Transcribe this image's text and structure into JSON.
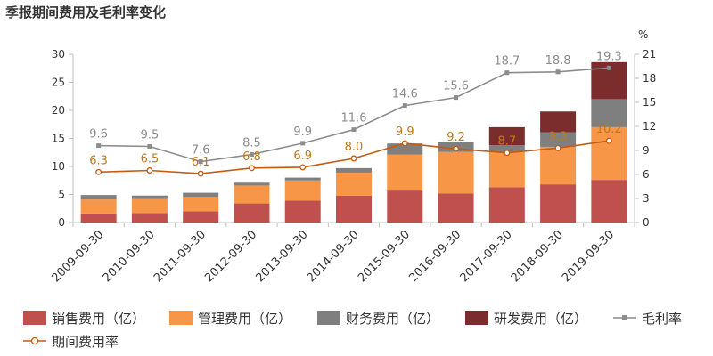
{
  "chart_data": {
    "type": "bar",
    "title": "季报期间费用及毛利率变化",
    "categories": [
      "2009-09-30",
      "2010-09-30",
      "2011-09-30",
      "2012-09-30",
      "2013-09-30",
      "2014-09-30",
      "2015-09-30",
      "2016-09-30",
      "2017-09-30",
      "2018-09-30",
      "2019-09-30"
    ],
    "stacked": true,
    "y_left": {
      "min": 0,
      "max": 30,
      "ticks": [
        0,
        5,
        10,
        15,
        20,
        25,
        30
      ]
    },
    "y_right": {
      "min": 0,
      "max": 21,
      "ticks": [
        0,
        3,
        6,
        9,
        12,
        15,
        18,
        21
      ],
      "unit": "%"
    },
    "series": [
      {
        "name": "销售费用（亿）",
        "axis": "left",
        "color": "#c0504d",
        "values": [
          1.6,
          1.7,
          2.0,
          3.4,
          3.9,
          4.8,
          5.7,
          5.2,
          6.3,
          6.8,
          7.6
        ]
      },
      {
        "name": "管理费用（亿）",
        "axis": "left",
        "color": "#f79646",
        "values": [
          2.5,
          2.5,
          2.6,
          3.2,
          3.6,
          4.1,
          6.4,
          7.4,
          6.3,
          6.7,
          9.4
        ]
      },
      {
        "name": "财务费用（亿）",
        "axis": "left",
        "color": "#7f7f7f",
        "values": [
          0.8,
          0.6,
          0.7,
          0.5,
          0.5,
          0.8,
          2.0,
          1.7,
          1.2,
          2.6,
          5.0
        ]
      },
      {
        "name": "研发费用（亿）",
        "axis": "left",
        "color": "#7b2c2c",
        "values": [
          0,
          0,
          0,
          0,
          0,
          0,
          0,
          0,
          3.2,
          3.7,
          6.6
        ]
      },
      {
        "name": "毛利率",
        "axis": "right",
        "type": "line",
        "marker": "square",
        "color": "#8c8c8c",
        "label_color": "#8c8c8c",
        "values": [
          9.6,
          9.5,
          7.6,
          8.5,
          9.9,
          11.6,
          14.6,
          15.6,
          18.7,
          18.8,
          19.3
        ],
        "labels": [
          "9.6",
          "9.5",
          "7.6",
          "8.5",
          "9.9",
          "11.6",
          "14.6",
          "15.6",
          "18.7",
          "18.8",
          "19.3"
        ]
      },
      {
        "name": "期间费用率",
        "axis": "right",
        "type": "line",
        "marker": "circle",
        "color": "#c55a11",
        "label_color": "#c07a1c",
        "values": [
          6.3,
          6.5,
          6.1,
          6.8,
          6.9,
          8.0,
          9.9,
          9.2,
          8.7,
          9.3,
          10.2
        ],
        "labels": [
          "6.3",
          "6.5",
          "6.1",
          "6.8",
          "6.9",
          "8.0",
          "9.9",
          "9.2",
          "8.7",
          "9.3",
          "10.2"
        ]
      }
    ],
    "legend_position": "bottom",
    "grid": false
  }
}
